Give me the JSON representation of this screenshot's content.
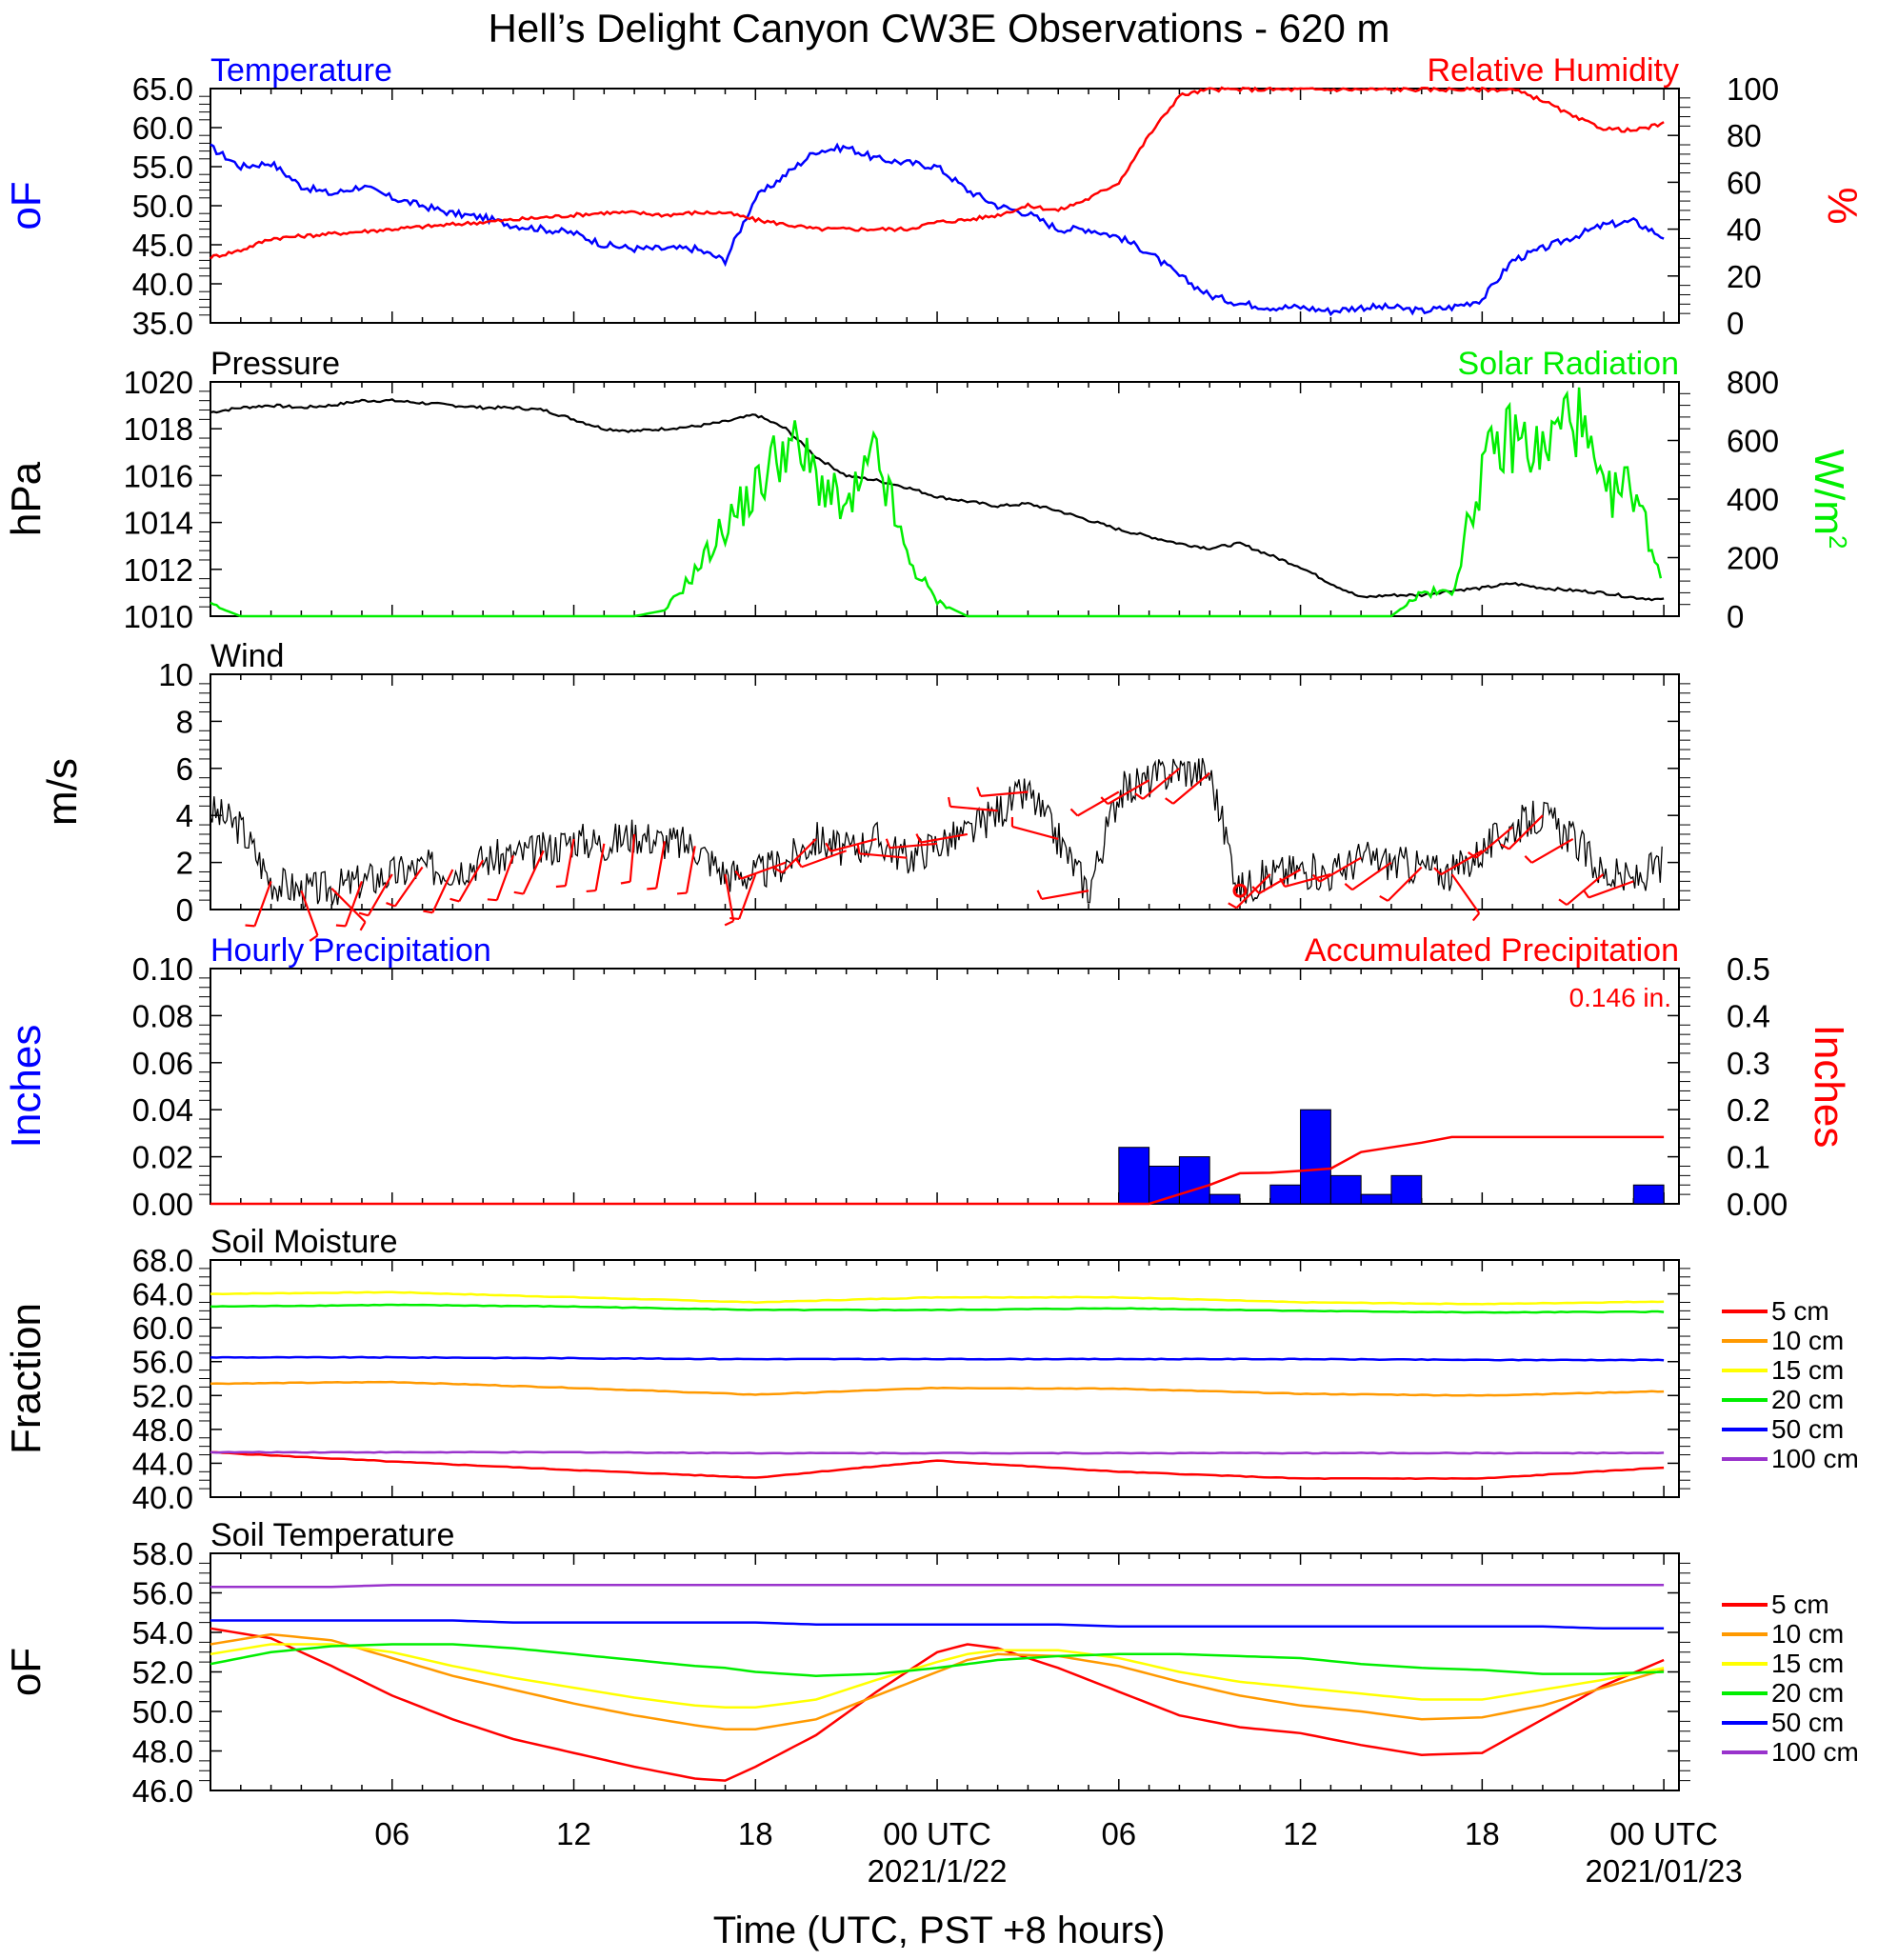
{
  "figure": {
    "title": "Hell’s Delight Canyon CW3E Observations - 620 m",
    "xlabel": "Time (UTC, PST +8 hours)",
    "xticks": [
      "06",
      "12",
      "18",
      "00 UTC",
      "06",
      "12",
      "18",
      "00 UTC"
    ],
    "date_labels": [
      "2021/1/22",
      "2021/01/23"
    ],
    "soil_legend": [
      "5 cm",
      "10 cm",
      "15 cm",
      "20 cm",
      "50 cm",
      "100 cm"
    ],
    "soil_colors": [
      "#ff0000",
      "#ff9900",
      "#ffff00",
      "#00ee00",
      "#0000ff",
      "#9933cc"
    ]
  },
  "chart_data": [
    {
      "type": "line",
      "title_left": "Temperature",
      "title_right": "Relative Humidity",
      "ylabel": "oF",
      "ylabel_right": "%",
      "ylim": [
        35,
        65
      ],
      "ylim_right": [
        0,
        100
      ],
      "yticks": [
        "35.0",
        "40.0",
        "45.0",
        "50.0",
        "55.0",
        "60.0",
        "65.0"
      ],
      "yticks_right": [
        "0",
        "20",
        "40",
        "60",
        "80",
        "100"
      ],
      "x_hours": [
        0,
        1,
        2,
        3,
        4,
        5,
        6,
        7,
        8,
        9,
        10,
        11,
        12,
        13,
        14,
        15,
        16,
        17,
        18,
        19,
        20,
        21,
        22,
        23,
        24,
        25,
        26,
        27,
        28,
        29,
        30,
        31,
        32,
        33,
        34,
        35,
        36,
        37,
        38,
        39,
        40,
        41,
        42,
        43,
        44,
        45,
        46,
        47,
        48
      ],
      "series": [
        {
          "name": "Temperature",
          "color": "#0000ff",
          "axis": "left",
          "values": [
            57.5,
            55,
            55.5,
            52.5,
            51.5,
            52.5,
            51,
            50,
            49,
            48.5,
            47.5,
            47,
            46.5,
            45,
            44.5,
            44.5,
            44.5,
            43,
            51,
            54,
            57,
            57.5,
            56,
            55.5,
            55,
            52,
            50,
            49,
            47,
            47,
            46,
            44,
            41,
            38.5,
            37.5,
            37,
            37,
            36.5,
            37,
            37,
            36.5,
            37,
            38,
            43,
            44.5,
            46,
            47.5,
            48,
            46
          ]
        },
        {
          "name": "Relative Humidity",
          "color": "#ff0000",
          "axis": "right",
          "values": [
            28,
            31,
            36,
            37,
            38,
            39,
            40,
            41,
            42,
            43,
            44,
            45,
            46,
            47,
            47,
            46,
            47,
            47,
            44,
            42,
            40,
            40,
            40,
            40,
            43,
            44,
            46,
            50,
            48,
            53,
            60,
            80,
            97,
            100,
            100,
            100,
            100,
            100,
            100,
            100,
            100,
            100,
            100,
            100,
            95,
            88,
            83,
            82,
            85
          ]
        }
      ]
    },
    {
      "type": "line",
      "title_left": "Pressure",
      "title_right": "Solar Radiation",
      "ylabel": "hPa",
      "ylabel_right": "W/m2",
      "ylim": [
        1010,
        1020
      ],
      "ylim_right": [
        0,
        800
      ],
      "yticks": [
        "1010",
        "1012",
        "1014",
        "1016",
        "1018",
        "1020"
      ],
      "yticks_right": [
        "0",
        "200",
        "400",
        "600",
        "800"
      ],
      "x_hours": [
        0,
        1,
        2,
        3,
        4,
        5,
        6,
        7,
        8,
        9,
        10,
        11,
        12,
        13,
        14,
        15,
        16,
        17,
        18,
        19,
        20,
        21,
        22,
        23,
        24,
        25,
        26,
        27,
        28,
        29,
        30,
        31,
        32,
        33,
        34,
        35,
        36,
        37,
        38,
        39,
        40,
        41,
        42,
        43,
        44,
        45,
        46,
        47,
        48
      ],
      "series": [
        {
          "name": "Pressure",
          "color": "#000000",
          "axis": "left",
          "values": [
            1018.7,
            1018.9,
            1019.0,
            1018.9,
            1019.0,
            1019.2,
            1019.2,
            1019.1,
            1019.0,
            1018.9,
            1018.9,
            1018.8,
            1018.4,
            1018.0,
            1017.9,
            1018.0,
            1018.1,
            1018.3,
            1018.6,
            1018.0,
            1016.8,
            1016.0,
            1015.8,
            1015.5,
            1015.1,
            1014.9,
            1014.7,
            1014.8,
            1014.5,
            1014.1,
            1013.7,
            1013.4,
            1013.1,
            1012.9,
            1013.1,
            1012.6,
            1012.1,
            1011.4,
            1010.8,
            1010.9,
            1010.9,
            1011.1,
            1011.2,
            1011.4,
            1011.2,
            1011.1,
            1011.0,
            1010.8,
            1010.7
          ]
        },
        {
          "name": "Solar Radiation",
          "color": "#00ee00",
          "axis": "right",
          "values": [
            40,
            0,
            0,
            0,
            0,
            0,
            0,
            0,
            0,
            0,
            0,
            0,
            0,
            0,
            0,
            20,
            150,
            310,
            430,
            600,
            480,
            350,
            550,
            200,
            50,
            0,
            0,
            0,
            0,
            0,
            0,
            0,
            0,
            0,
            0,
            0,
            0,
            0,
            0,
            0,
            80,
            80,
            500,
            620,
            550,
            720,
            400,
            450,
            100
          ]
        }
      ]
    },
    {
      "type": "line",
      "title_left": "Wind",
      "ylabel": "m/s",
      "ylim": [
        0,
        10
      ],
      "yticks": [
        "0",
        "2",
        "4",
        "6",
        "8",
        "10"
      ],
      "x_hours": [
        0,
        1,
        2,
        3,
        4,
        5,
        6,
        7,
        8,
        9,
        10,
        11,
        12,
        13,
        14,
        15,
        16,
        17,
        18,
        19,
        20,
        21,
        22,
        23,
        24,
        25,
        26,
        27,
        28,
        29,
        30,
        31,
        32,
        33,
        34,
        35,
        36,
        37,
        38,
        39,
        40,
        41,
        42,
        43,
        44,
        45,
        46,
        47,
        48
      ],
      "series": [
        {
          "name": "Wind speed",
          "color": "#000000",
          "axis": "left",
          "values": [
            4.2,
            3.5,
            1.2,
            0.8,
            0.9,
            1.2,
            1.5,
            1.8,
            1.7,
            2.1,
            2.3,
            2.5,
            3.0,
            2.8,
            3.2,
            2.9,
            2.7,
            1.5,
            1.5,
            2.0,
            3.0,
            2.5,
            3.0,
            2.2,
            2.8,
            3.2,
            4.2,
            5.0,
            3.0,
            0.8,
            5.0,
            5.5,
            6.0,
            5.8,
            0.8,
            1.5,
            1.7,
            1.5,
            2.2,
            2.0,
            1.8,
            1.5,
            2.5,
            3.5,
            4.0,
            3.0,
            1.5,
            1.2,
            2.0
          ]
        }
      ],
      "barbs": {
        "color": "#ff0000",
        "x_hours": [
          2,
          3,
          4,
          5,
          6,
          7,
          8,
          9,
          10,
          11,
          12,
          13,
          14,
          15,
          16,
          17,
          18,
          19,
          20,
          21,
          22,
          23,
          24,
          25,
          26,
          27,
          28,
          29,
          30,
          31,
          32,
          33,
          34,
          35,
          36,
          37,
          38,
          39,
          40,
          41,
          42,
          43,
          44,
          45,
          46,
          47
        ],
        "speed": [
          2,
          2,
          2,
          2,
          2,
          2,
          2,
          2,
          2,
          2,
          2,
          2,
          2,
          2,
          2,
          2,
          2,
          3,
          3,
          3,
          3,
          3,
          3,
          3,
          3,
          4,
          3,
          2,
          3,
          3,
          3,
          3,
          0,
          2,
          2,
          2,
          2,
          2,
          2,
          2,
          2,
          2,
          2,
          2,
          2,
          2
        ],
        "dir_deg": [
          200,
          160,
          135,
          200,
          210,
          215,
          205,
          210,
          200,
          205,
          190,
          190,
          185,
          190,
          190,
          170,
          200,
          250,
          225,
          250,
          255,
          275,
          265,
          260,
          275,
          265,
          285,
          260,
          240,
          240,
          230,
          230,
          0,
          225,
          240,
          255,
          240,
          235,
          225,
          145,
          240,
          230,
          225,
          240,
          230,
          250
        ]
      }
    },
    {
      "type": "bar",
      "title_left": "Hourly Precipitation",
      "title_right": "Accumulated Precipitation",
      "total_label": "0.146 in.",
      "ylabel": "Inches",
      "ylabel_right": "Inches",
      "ylim": [
        0,
        0.1
      ],
      "ylim_right": [
        0,
        0.5
      ],
      "yticks": [
        "0.00",
        "0.02",
        "0.04",
        "0.06",
        "0.08",
        "0.10"
      ],
      "yticks_right": [
        "0.00",
        "0.1",
        "0.2",
        "0.3",
        "0.4",
        "0.5"
      ],
      "bars": {
        "name": "Hourly Precipitation",
        "color": "#0000ff",
        "x_hours": [
          31,
          32,
          33,
          34,
          36,
          37,
          38,
          39,
          40,
          48
        ],
        "values": [
          0.024,
          0.016,
          0.02,
          0.004,
          0.008,
          0.04,
          0.012,
          0.004,
          0.012,
          0.008
        ]
      },
      "series": [
        {
          "name": "Accumulated Precipitation",
          "color": "#ff0000",
          "axis": "right",
          "x_hours": [
            0,
            31,
            32,
            33,
            34,
            35,
            36,
            37,
            38,
            39,
            40,
            41,
            48
          ],
          "values": [
            0,
            0,
            0.02,
            0.04,
            0.065,
            0.066,
            0.07,
            0.075,
            0.11,
            0.12,
            0.13,
            0.142,
            0.142
          ]
        }
      ]
    },
    {
      "type": "line",
      "title_left": "Soil Moisture",
      "ylabel": "Fraction",
      "ylim": [
        40,
        68
      ],
      "yticks": [
        "40.0",
        "44.0",
        "48.0",
        "52.0",
        "56.0",
        "60.0",
        "64.0",
        "68.0"
      ],
      "x_hours": [
        0,
        6,
        12,
        18,
        24,
        30,
        36,
        42,
        48
      ],
      "series": [
        {
          "name": "5 cm",
          "color": "#ff0000",
          "values": [
            45.3,
            44.2,
            43.2,
            42.3,
            44.3,
            43.0,
            42.2,
            42.2,
            43.5
          ]
        },
        {
          "name": "10 cm",
          "color": "#ff9900",
          "values": [
            53.4,
            53.6,
            52.9,
            52.1,
            52.9,
            52.8,
            52.2,
            52.0,
            52.5
          ]
        },
        {
          "name": "15 cm",
          "color": "#ffff00",
          "values": [
            64.0,
            64.2,
            63.6,
            63.0,
            63.6,
            63.6,
            63.0,
            62.8,
            63.1
          ]
        },
        {
          "name": "20 cm",
          "color": "#00ee00",
          "values": [
            62.5,
            62.7,
            62.5,
            62.1,
            62.1,
            62.3,
            62.0,
            61.8,
            61.9
          ]
        },
        {
          "name": "50 cm",
          "color": "#0000ff",
          "values": [
            56.5,
            56.5,
            56.4,
            56.3,
            56.3,
            56.3,
            56.3,
            56.2,
            56.2
          ]
        },
        {
          "name": "100 cm",
          "color": "#9933cc",
          "values": [
            45.3,
            45.3,
            45.3,
            45.2,
            45.2,
            45.2,
            45.2,
            45.2,
            45.2
          ]
        }
      ]
    },
    {
      "type": "line",
      "title_left": "Soil Temperature",
      "ylabel": "oF",
      "ylim": [
        46,
        58
      ],
      "yticks": [
        "46.0",
        "48.0",
        "50.0",
        "52.0",
        "54.0",
        "56.0",
        "58.0"
      ],
      "x_hours": [
        0,
        2,
        4,
        6,
        8,
        10,
        12,
        14,
        16,
        17,
        18,
        20,
        22,
        24,
        25,
        26,
        28,
        30,
        32,
        34,
        36,
        38,
        40,
        42,
        44,
        46,
        48
      ],
      "series": [
        {
          "name": "5 cm",
          "color": "#ff0000",
          "values": [
            54.2,
            53.7,
            52.3,
            50.8,
            49.6,
            48.6,
            47.9,
            47.2,
            46.6,
            46.5,
            47.2,
            48.8,
            51.0,
            53.0,
            53.4,
            53.2,
            52.2,
            51.0,
            49.8,
            49.2,
            48.9,
            48.3,
            47.8,
            47.9,
            49.6,
            51.3,
            52.6
          ]
        },
        {
          "name": "10 cm",
          "color": "#ff9900",
          "values": [
            53.4,
            53.9,
            53.6,
            52.7,
            51.8,
            51.1,
            50.4,
            49.8,
            49.3,
            49.1,
            49.1,
            49.6,
            50.8,
            52.0,
            52.6,
            52.9,
            52.8,
            52.3,
            51.5,
            50.8,
            50.3,
            50.0,
            49.6,
            49.7,
            50.3,
            51.2,
            52.1
          ]
        },
        {
          "name": "15 cm",
          "color": "#ffff00",
          "values": [
            52.9,
            53.4,
            53.4,
            53.0,
            52.3,
            51.7,
            51.2,
            50.7,
            50.3,
            50.2,
            50.2,
            50.6,
            51.6,
            52.5,
            52.9,
            53.1,
            53.1,
            52.7,
            52.0,
            51.5,
            51.2,
            50.9,
            50.6,
            50.6,
            51.1,
            51.6,
            52.2
          ]
        },
        {
          "name": "20 cm",
          "color": "#00ee00",
          "values": [
            52.4,
            53.0,
            53.3,
            53.4,
            53.4,
            53.2,
            52.9,
            52.6,
            52.3,
            52.2,
            52.0,
            51.8,
            51.9,
            52.2,
            52.4,
            52.6,
            52.8,
            52.9,
            52.9,
            52.8,
            52.7,
            52.4,
            52.2,
            52.1,
            51.9,
            51.9,
            52.0
          ]
        },
        {
          "name": "50 cm",
          "color": "#0000ff",
          "values": [
            54.6,
            54.6,
            54.6,
            54.6,
            54.6,
            54.5,
            54.5,
            54.5,
            54.5,
            54.5,
            54.5,
            54.4,
            54.4,
            54.4,
            54.4,
            54.4,
            54.4,
            54.3,
            54.3,
            54.3,
            54.3,
            54.3,
            54.3,
            54.3,
            54.3,
            54.2,
            54.2
          ]
        },
        {
          "name": "100 cm",
          "color": "#9933cc",
          "values": [
            56.3,
            56.3,
            56.3,
            56.4,
            56.4,
            56.4,
            56.4,
            56.4,
            56.4,
            56.4,
            56.4,
            56.4,
            56.4,
            56.4,
            56.4,
            56.4,
            56.4,
            56.4,
            56.4,
            56.4,
            56.4,
            56.4,
            56.4,
            56.4,
            56.4,
            56.4,
            56.4
          ]
        }
      ]
    }
  ]
}
